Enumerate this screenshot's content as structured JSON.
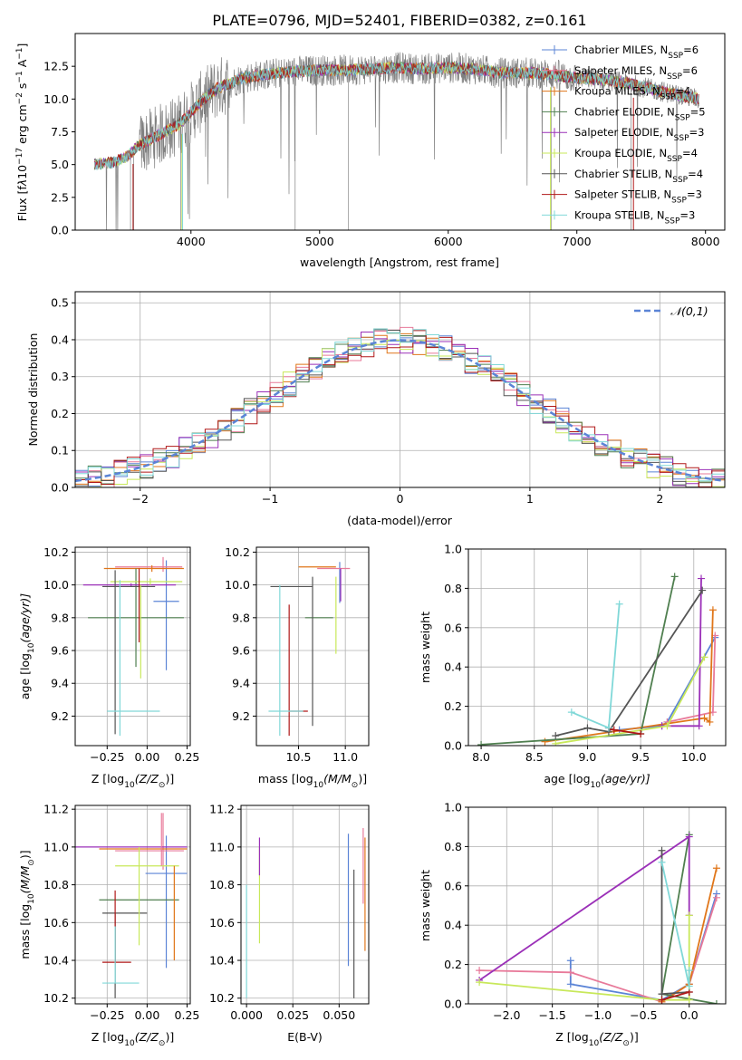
{
  "figure_title": "PLATE=0796, MJD=52401, FIBERID=0382, z=0.161",
  "colors": {
    "Chabrier MILES": "#5b84d6",
    "Salpeter MILES": "#e87a9a",
    "Kroupa MILES": "#e0761a",
    "Chabrier ELODIE": "#4f7f4f",
    "Salpeter ELODIE": "#9b30b8",
    "Kroupa ELODIE": "#c8e85a",
    "Chabrier STELIB": "#555555",
    "Salpeter STELIB": "#b01818",
    "Kroupa STELIB": "#80d8d8",
    "data": "#808080"
  },
  "chart_data": [
    {
      "type": "line",
      "id": "spectrum",
      "title": "PLATE=0796, MJD=52401, FIBERID=0382, z=0.161",
      "xlabel": "wavelength [Angstrom, rest frame]",
      "ylabel_parts": [
        "Flux [f",
        "λ",
        "10",
        "−17",
        " erg cm",
        "−2",
        " s",
        "−1",
        " A",
        "−1",
        "]"
      ],
      "xlim": [
        3100,
        8150
      ],
      "ylim": [
        0,
        15
      ],
      "xticks": [
        4000,
        5000,
        6000,
        7000,
        8000
      ],
      "yticks": [
        0.0,
        2.5,
        5.0,
        7.5,
        10.0,
        12.5
      ],
      "legend_position": "right",
      "legend": [
        {
          "name": "Chabrier MILES",
          "nssp": "6"
        },
        {
          "name": "Salpeter MILES",
          "nssp": "6"
        },
        {
          "name": "Kroupa MILES",
          "nssp": "4"
        },
        {
          "name": "Chabrier ELODIE",
          "nssp": "5"
        },
        {
          "name": "Salpeter ELODIE",
          "nssp": "3"
        },
        {
          "name": "Kroupa ELODIE",
          "nssp": "4"
        },
        {
          "name": "Chabrier STELIB",
          "nssp": "4"
        },
        {
          "name": "Salpeter STELIB",
          "nssp": "3"
        },
        {
          "name": "Kroupa STELIB",
          "nssp": "3"
        }
      ],
      "continuum": {
        "x": [
          3250,
          3400,
          3500,
          3600,
          3700,
          3800,
          3900,
          4000,
          4100,
          4200,
          4300,
          4400,
          4600,
          4800,
          5000,
          5200,
          5400,
          5600,
          5800,
          6000,
          6200,
          6400,
          6600,
          6800,
          7000,
          7200,
          7400,
          7600,
          7800,
          7950
        ],
        "y": [
          5.0,
          5.2,
          5.6,
          6.5,
          7.0,
          7.5,
          8.0,
          9.0,
          10.0,
          10.8,
          11.2,
          11.6,
          11.9,
          12.1,
          12.2,
          12.2,
          12.3,
          12.4,
          12.3,
          12.4,
          12.3,
          12.0,
          12.0,
          11.9,
          11.6,
          11.5,
          11.2,
          10.7,
          10.3,
          10.0
        ]
      }
    },
    {
      "type": "histogram",
      "id": "residuals",
      "xlabel": "(data-model)/error",
      "ylabel": "Normed distribution",
      "xlim": [
        -2.5,
        2.5
      ],
      "ylim": [
        0,
        0.53
      ],
      "xticks": [
        -2,
        -1,
        0,
        1,
        2
      ],
      "yticks": [
        0.0,
        0.1,
        0.2,
        0.3,
        0.4,
        0.5
      ],
      "grid": true,
      "legend_label": "𝒩(0,1)",
      "legend_position": "top-right",
      "bin_width": 0.1,
      "bin_start": -2.5
    },
    {
      "type": "errorbar",
      "id": "age_vs_Z",
      "xlabel_parts": [
        "Z [log",
        "10",
        "(Z/Z",
        "⊙",
        ")]"
      ],
      "ylabel_parts": [
        "age  [log",
        "10",
        "(age/yr)]"
      ],
      "xlim": [
        -0.45,
        0.27
      ],
      "ylim": [
        9.02,
        10.23
      ],
      "xticks": [
        -0.25,
        0.0,
        0.25
      ],
      "yticks": [
        9.2,
        9.4,
        9.6,
        9.8,
        10.0,
        10.2
      ],
      "grid": true,
      "points": [
        {
          "series": "Chabrier MILES",
          "x": 0.12,
          "y": 9.9,
          "xerr": [
            0.08,
            0.08
          ],
          "yerr": [
            0.42,
            0.25
          ]
        },
        {
          "series": "Salpeter MILES",
          "x": 0.1,
          "y": 10.11,
          "xerr": [
            0.3,
            0.12
          ],
          "yerr": [
            0.03,
            0.06
          ]
        },
        {
          "series": "Kroupa MILES",
          "x": 0.03,
          "y": 10.1,
          "xerr": [
            0.3,
            0.2
          ],
          "yerr": [
            0.02,
            0.02
          ]
        },
        {
          "series": "Chabrier ELODIE",
          "x": -0.07,
          "y": 9.8,
          "xerr": [
            0.3,
            0.3
          ],
          "yerr": [
            0.3,
            0.3
          ]
        },
        {
          "series": "Salpeter ELODIE",
          "x": -0.1,
          "y": 10.0,
          "xerr": [
            0.3,
            0.28
          ],
          "yerr": [
            0.01,
            0.01
          ]
        },
        {
          "series": "Kroupa ELODIE",
          "x": 0.02,
          "y": 10.02,
          "xerr": [
            0.25,
            0.2
          ],
          "yerr": [
            0.02,
            0.02
          ]
        },
        {
          "series": "Chabrier STELIB",
          "x": -0.2,
          "y": 9.99,
          "xerr": [
            0.08,
            0.25
          ],
          "yerr": [
            0.9,
            0.1
          ]
        },
        {
          "series": "Salpeter STELIB",
          "x": -0.05,
          "y": 9.95,
          "xerr": [
            0.0,
            0.0
          ],
          "yerr": [
            0.3,
            0.15
          ]
        },
        {
          "series": "Kroupa STELIB",
          "x": -0.17,
          "y": 9.23,
          "xerr": [
            0.08,
            0.25
          ],
          "yerr": [
            0.15,
            0.8
          ]
        },
        {
          "series": "Kroupa ELODIE",
          "x": -0.04,
          "y": 9.75,
          "xerr": [
            0.0,
            0.0
          ],
          "yerr": [
            0.32,
            0.25
          ]
        }
      ]
    },
    {
      "type": "errorbar",
      "id": "age_vs_mass",
      "xlabel_parts": [
        "mass [log",
        "10",
        "(M/M",
        "⊙",
        ")]"
      ],
      "xlim": [
        10.05,
        11.25
      ],
      "ylim": [
        9.02,
        10.23
      ],
      "xticks": [
        10.5,
        11.0
      ],
      "yticks": [
        9.2,
        9.4,
        9.6,
        9.8,
        10.0,
        10.2
      ],
      "grid": true,
      "points": [
        {
          "series": "Chabrier MILES",
          "x": 10.94,
          "y": 10.02,
          "xerr": [
            0.0,
            0.0
          ],
          "yerr": [
            0.13,
            0.12
          ]
        },
        {
          "series": "Salpeter MILES",
          "x": 10.9,
          "y": 10.1,
          "xerr": [
            0.2,
            0.15
          ],
          "yerr": [
            0.0,
            0.0
          ]
        },
        {
          "series": "Kroupa MILES",
          "x": 10.9,
          "y": 10.11,
          "xerr": [
            0.4,
            0.0
          ],
          "yerr": [
            0.0,
            0.0
          ]
        },
        {
          "series": "Chabrier ELODIE",
          "x": 10.72,
          "y": 9.8,
          "xerr": [
            0.15,
            0.15
          ],
          "yerr": [
            0.0,
            0.0
          ]
        },
        {
          "series": "Salpeter ELODIE",
          "x": 10.95,
          "y": 10.0,
          "xerr": [
            0.0,
            0.0
          ],
          "yerr": [
            0.1,
            0.1
          ]
        },
        {
          "series": "Kroupa ELODIE",
          "x": 10.9,
          "y": 9.95,
          "xerr": [
            0.0,
            0.0
          ],
          "yerr": [
            0.37,
            0.1
          ]
        },
        {
          "series": "Chabrier STELIB",
          "x": 10.65,
          "y": 9.99,
          "xerr": [
            0.45,
            0.0
          ],
          "yerr": [
            0.85,
            0.06
          ]
        },
        {
          "series": "Salpeter STELIB",
          "x": 10.4,
          "y": 9.23,
          "xerr": [
            0.0,
            0.2
          ],
          "yerr": [
            0.15,
            0.65
          ]
        },
        {
          "series": "Kroupa STELIB",
          "x": 10.3,
          "y": 9.23,
          "xerr": [
            0.12,
            0.25
          ],
          "yerr": [
            0.15,
            0.77
          ]
        }
      ]
    },
    {
      "type": "line",
      "id": "mass_weight_vs_age",
      "xlabel_parts": [
        "age  [log",
        "10",
        "(age/yr)]"
      ],
      "ylabel": "mass weight",
      "xlim": [
        7.88,
        10.3
      ],
      "ylim": [
        0,
        1.0
      ],
      "xticks": [
        8.0,
        8.5,
        9.0,
        9.5,
        10.0
      ],
      "yticks": [
        0.0,
        0.2,
        0.4,
        0.6,
        0.8,
        1.0
      ],
      "grid": true,
      "series": [
        {
          "name": "Chabrier MILES",
          "x": [
            9.3,
            9.7,
            9.75,
            10.2
          ],
          "y": [
            0.08,
            0.1,
            0.12,
            0.55
          ]
        },
        {
          "name": "Salpeter MILES",
          "x": [
            9.75,
            10.18,
            10.2
          ],
          "y": [
            0.12,
            0.17,
            0.56
          ]
        },
        {
          "name": "Kroupa MILES",
          "x": [
            8.6,
            10.1,
            10.15,
            10.18
          ],
          "y": [
            0.02,
            0.14,
            0.12,
            0.69
          ]
        },
        {
          "name": "Chabrier ELODIE",
          "x": [
            8.0,
            9.5,
            9.82
          ],
          "y": [
            0.005,
            0.06,
            0.86
          ]
        },
        {
          "name": "Salpeter ELODIE",
          "x": [
            9.7,
            10.05,
            10.07
          ],
          "y": [
            0.1,
            0.1,
            0.85
          ]
        },
        {
          "name": "Kroupa ELODIE",
          "x": [
            8.7,
            9.75,
            10.1
          ],
          "y": [
            0.01,
            0.1,
            0.45
          ]
        },
        {
          "name": "Chabrier STELIB",
          "x": [
            8.7,
            9.0,
            9.2,
            10.08
          ],
          "y": [
            0.05,
            0.09,
            0.07,
            0.79
          ]
        },
        {
          "name": "Salpeter STELIB",
          "x": [
            9.2,
            9.25,
            9.5
          ],
          "y": [
            0.09,
            0.08,
            0.06
          ]
        },
        {
          "name": "Kroupa STELIB",
          "x": [
            8.85,
            9.2,
            9.3
          ],
          "y": [
            0.17,
            0.09,
            0.72
          ]
        }
      ]
    },
    {
      "type": "errorbar",
      "id": "mass_vs_Z",
      "xlabel_parts": [
        "Z [log",
        "10",
        "(Z/Z",
        "⊙",
        ")]"
      ],
      "ylabel_parts": [
        "mass [log",
        "10",
        "(M/M",
        "⊙",
        ")]"
      ],
      "xlim": [
        -0.45,
        0.27
      ],
      "ylim": [
        10.17,
        11.22
      ],
      "xticks": [
        -0.25,
        0.0,
        0.25
      ],
      "yticks": [
        10.2,
        10.4,
        10.6,
        10.8,
        11.0,
        11.2
      ],
      "grid": true,
      "points": [
        {
          "series": "Chabrier MILES",
          "x": 0.12,
          "y": 10.86,
          "xerr": [
            0.13,
            0.13
          ],
          "yerr": [
            0.5,
            0.2
          ]
        },
        {
          "series": "Salpeter MILES",
          "x": 0.1,
          "y": 10.98,
          "xerr": [
            0.3,
            0.13
          ],
          "yerr": [
            0.1,
            0.2
          ]
        },
        {
          "series": "Kroupa MILES",
          "x": 0.05,
          "y": 10.99,
          "xerr": [
            0.35,
            0.2
          ],
          "yerr": [
            0.0,
            0.0
          ]
        },
        {
          "series": "Chabrier ELODIE",
          "x": -0.1,
          "y": 10.72,
          "xerr": [
            0.2,
            0.3
          ],
          "yerr": [
            0.0,
            0.0
          ]
        },
        {
          "series": "Salpeter ELODIE",
          "x": -0.05,
          "y": 11.0,
          "xerr": [
            0.4,
            0.3
          ],
          "yerr": [
            0.0,
            0.0
          ]
        },
        {
          "series": "Kroupa ELODIE",
          "x": -0.1,
          "y": 10.9,
          "xerr": [
            0.1,
            0.3
          ],
          "yerr": [
            0.0,
            0.0
          ]
        },
        {
          "series": "Chabrier STELIB",
          "x": -0.2,
          "y": 10.65,
          "xerr": [
            0.08,
            0.2
          ],
          "yerr": [
            0.45,
            0.0
          ]
        },
        {
          "series": "Salpeter STELIB",
          "x": -0.2,
          "y": 10.39,
          "xerr": [
            0.08,
            0.1
          ],
          "yerr": [
            0.0,
            0.38
          ]
        },
        {
          "series": "Kroupa STELIB",
          "x": -0.2,
          "y": 10.28,
          "xerr": [
            0.08,
            0.15
          ],
          "yerr": [
            0.0,
            0.3
          ]
        },
        {
          "series": "Kroupa ELODIE",
          "x": -0.05,
          "y": 10.7,
          "xerr": [
            0.0,
            0.0
          ],
          "yerr": [
            0.22,
            0.3
          ]
        },
        {
          "series": "Kroupa MILES",
          "x": 0.17,
          "y": 10.6,
          "xerr": [
            0.0,
            0.0
          ],
          "yerr": [
            0.2,
            0.3
          ]
        },
        {
          "series": "Salpeter MILES",
          "x": 0.09,
          "y": 11.0,
          "xerr": [
            0.0,
            0.0
          ],
          "yerr": [
            0.1,
            0.18
          ]
        }
      ]
    },
    {
      "type": "errorbar",
      "id": "mass_vs_ebv",
      "xlabel": "E(B-V)",
      "xlim": [
        -0.003,
        0.066
      ],
      "ylim": [
        10.17,
        11.22
      ],
      "xticks": [
        0.0,
        0.025,
        0.05
      ],
      "xtick_labels": [
        "0.000",
        "0.025",
        "0.050"
      ],
      "yticks": [
        10.2,
        10.4,
        10.6,
        10.8,
        11.0,
        11.2
      ],
      "grid": true,
      "points": [
        {
          "series": "Kroupa STELIB",
          "x": 0.0,
          "y": 10.5,
          "yerr": [
            0.3,
            0.3
          ]
        },
        {
          "series": "Kroupa ELODIE",
          "x": 0.007,
          "y": 10.75,
          "yerr": [
            0.26,
            0.25
          ]
        },
        {
          "series": "Salpeter ELODIE",
          "x": 0.007,
          "y": 10.95,
          "yerr": [
            0.1,
            0.1
          ]
        },
        {
          "series": "Chabrier MILES",
          "x": 0.055,
          "y": 10.72,
          "yerr": [
            0.35,
            0.35
          ]
        },
        {
          "series": "Chabrier STELIB",
          "x": 0.058,
          "y": 10.58,
          "yerr": [
            0.38,
            0.3
          ]
        },
        {
          "series": "Salpeter MILES",
          "x": 0.063,
          "y": 10.9,
          "yerr": [
            0.2,
            0.2
          ]
        },
        {
          "series": "Kroupa MILES",
          "x": 0.064,
          "y": 10.75,
          "yerr": [
            0.3,
            0.3
          ]
        }
      ]
    },
    {
      "type": "line",
      "id": "mass_weight_vs_Z",
      "xlabel_parts": [
        "Z [log",
        "10",
        "(Z/Z",
        "⊙",
        ")]"
      ],
      "ylabel": "mass weight",
      "xlim": [
        -2.42,
        0.4
      ],
      "ylim": [
        0,
        1.0
      ],
      "xticks": [
        -2.0,
        -1.5,
        -1.0,
        -0.5,
        0.0
      ],
      "yticks": [
        0.0,
        0.2,
        0.4,
        0.6,
        0.8,
        1.0
      ],
      "grid": true,
      "series": [
        {
          "name": "Chabrier MILES",
          "x": [
            -1.3,
            -1.3,
            -0.3,
            0.0,
            0.3
          ],
          "y": [
            0.22,
            0.1,
            0.02,
            0.1,
            0.56
          ]
        },
        {
          "name": "Salpeter MILES",
          "x": [
            -2.3,
            -1.3,
            -0.3,
            0.0,
            0.3
          ],
          "y": [
            0.17,
            0.16,
            0.01,
            0.1,
            0.54
          ]
        },
        {
          "name": "Kroupa MILES",
          "x": [
            -0.3,
            0.0,
            0.3
          ],
          "y": [
            0.01,
            0.1,
            0.69
          ]
        },
        {
          "name": "Chabrier ELODIE",
          "x": [
            0.3,
            -0.3,
            0.0
          ],
          "y": [
            0.0,
            0.05,
            0.86
          ]
        },
        {
          "name": "Salpeter ELODIE",
          "x": [
            -2.3,
            0.0,
            0.0
          ],
          "y": [
            0.12,
            0.85,
            0.45
          ]
        },
        {
          "name": "Kroupa ELODIE",
          "x": [
            -2.3,
            -0.3,
            0.0,
            0.0
          ],
          "y": [
            0.11,
            0.02,
            0.02,
            0.45
          ]
        },
        {
          "name": "Chabrier STELIB",
          "x": [
            -0.3,
            -0.3,
            0.0
          ],
          "y": [
            0.78,
            0.05,
            0.06
          ]
        },
        {
          "name": "Salpeter STELIB",
          "x": [
            -0.3,
            0.0
          ],
          "y": [
            0.02,
            0.06
          ]
        },
        {
          "name": "Kroupa STELIB",
          "x": [
            -0.3,
            0.0,
            0.0
          ],
          "y": [
            0.72,
            0.09,
            0.17
          ]
        }
      ]
    }
  ]
}
